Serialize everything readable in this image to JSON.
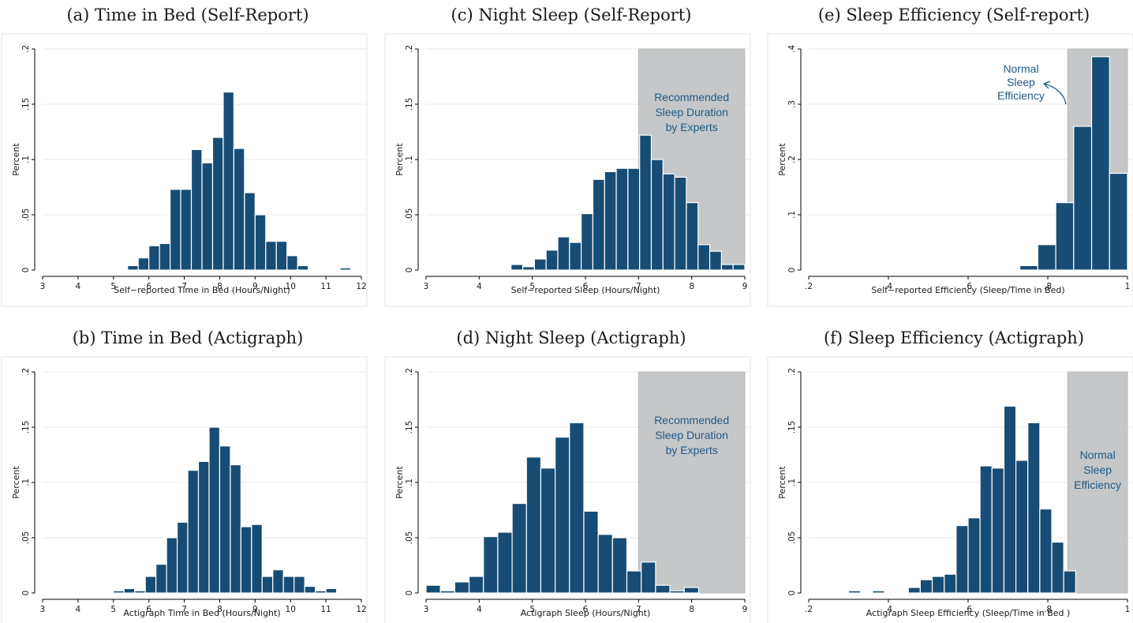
{
  "figure": {
    "panel_titles": [
      "(a) Time in Bed (Self-Report)",
      "(b) Time in Bed (Actigraph)",
      "(c) Night Sleep (Self-Report)",
      "(d) Night Sleep (Actigraph)",
      "(e) Sleep Efficiency (Self-report)",
      "(f) Sleep Efficiency (Actigraph)"
    ],
    "colors": {
      "bar": "#174d74",
      "shade": "#c5c7c8",
      "annotation": "#1f5a86"
    }
  },
  "chart_data": [
    {
      "id": "a",
      "type": "bar",
      "title": "(a) Time in Bed (Self-Report)",
      "xlabel": "Self−reported Time in Bed (Hours/Night)",
      "ylabel": "Percent",
      "xlim": [
        3,
        12
      ],
      "ylim": [
        0,
        0.2
      ],
      "xticks": [
        3,
        4,
        5,
        6,
        7,
        8,
        9,
        10,
        11,
        12
      ],
      "xtick_labels": [
        "3",
        "4",
        "5",
        "6",
        "7",
        "8",
        "9",
        "10",
        "11",
        "12"
      ],
      "yticks": [
        0,
        0.05,
        0.1,
        0.15,
        0.2
      ],
      "ytick_labels": [
        "0",
        ".05",
        ".1",
        ".15",
        ".2"
      ],
      "bin_width": 0.3,
      "bin_starts": [
        5.4,
        5.7,
        6.0,
        6.3,
        6.6,
        6.9,
        7.2,
        7.5,
        7.8,
        8.1,
        8.4,
        8.7,
        9.0,
        9.3,
        9.6,
        9.9,
        10.2,
        11.4
      ],
      "values": [
        0.004,
        0.011,
        0.022,
        0.024,
        0.073,
        0.073,
        0.109,
        0.097,
        0.12,
        0.161,
        0.11,
        0.07,
        0.05,
        0.026,
        0.026,
        0.013,
        0.004,
        0.002
      ]
    },
    {
      "id": "b",
      "type": "bar",
      "title": "(b) Time in Bed (Actigraph)",
      "xlabel": "Actigraph Time in Bed (Hours/Night)",
      "ylabel": "Percent",
      "xlim": [
        3,
        12
      ],
      "ylim": [
        0,
        0.2
      ],
      "xticks": [
        3,
        4,
        5,
        6,
        7,
        8,
        9,
        10,
        11,
        12
      ],
      "xtick_labels": [
        "3",
        "4",
        "5",
        "6",
        "7",
        "8",
        "9",
        "10",
        "11",
        "12"
      ],
      "yticks": [
        0,
        0.05,
        0.1,
        0.15,
        0.2
      ],
      "ytick_labels": [
        "0",
        ".05",
        ".1",
        ".15",
        ".2"
      ],
      "bin_width": 0.3,
      "bin_starts": [
        5.0,
        5.3,
        5.6,
        5.9,
        6.2,
        6.5,
        6.8,
        7.1,
        7.4,
        7.7,
        8.0,
        8.3,
        8.6,
        8.9,
        9.2,
        9.5,
        9.8,
        10.1,
        10.4,
        10.7,
        11.0
      ],
      "values": [
        0.002,
        0.004,
        0.002,
        0.015,
        0.026,
        0.05,
        0.064,
        0.111,
        0.119,
        0.15,
        0.133,
        0.116,
        0.06,
        0.062,
        0.015,
        0.021,
        0.015,
        0.015,
        0.006,
        0.002,
        0.004
      ]
    },
    {
      "id": "c",
      "type": "bar",
      "title": "(c) Night Sleep (Self-Report)",
      "xlabel": "Self−reported Sleep (Hours/Night)",
      "ylabel": "Percent",
      "xlim": [
        3,
        9
      ],
      "ylim": [
        0,
        0.2
      ],
      "xticks": [
        3,
        4,
        5,
        6,
        7,
        8,
        9
      ],
      "xtick_labels": [
        "3",
        "4",
        "5",
        "6",
        "7",
        "8",
        "9"
      ],
      "yticks": [
        0,
        0.05,
        0.1,
        0.15,
        0.2
      ],
      "ytick_labels": [
        "0",
        ".05",
        ".1",
        ".15",
        ".2"
      ],
      "bin_width": 0.22,
      "bin_starts": [
        4.6,
        4.82,
        5.04,
        5.26,
        5.48,
        5.7,
        5.92,
        6.14,
        6.36,
        6.58,
        6.8,
        7.02,
        7.24,
        7.46,
        7.68,
        7.9,
        8.12,
        8.34,
        8.56,
        8.78
      ],
      "values": [
        0.005,
        0.003,
        0.01,
        0.018,
        0.03,
        0.025,
        0.051,
        0.082,
        0.089,
        0.092,
        0.092,
        0.122,
        0.1,
        0.087,
        0.084,
        0.061,
        0.023,
        0.017,
        0.005,
        0.005
      ],
      "shaded_region": {
        "x_from": 7,
        "x_to": 9,
        "label": [
          "Recommended",
          "Sleep Duration",
          "by Experts"
        ]
      }
    },
    {
      "id": "d",
      "type": "bar",
      "title": "(d) Night Sleep (Actigraph)",
      "xlabel": "Actigraph Sleep (Hours/Night)",
      "ylabel": "Percent",
      "xlim": [
        3,
        9
      ],
      "ylim": [
        0,
        0.2
      ],
      "xticks": [
        3,
        4,
        5,
        6,
        7,
        8,
        9
      ],
      "xtick_labels": [
        "3",
        "4",
        "5",
        "6",
        "7",
        "8",
        "9"
      ],
      "yticks": [
        0,
        0.05,
        0.1,
        0.15,
        0.2
      ],
      "ytick_labels": [
        "0",
        ".05",
        ".1",
        ".15",
        ".2"
      ],
      "bin_width": 0.27,
      "bin_starts": [
        3.0,
        3.27,
        3.54,
        3.81,
        4.08,
        4.35,
        4.62,
        4.89,
        5.16,
        5.43,
        5.7,
        5.97,
        6.24,
        6.51,
        6.78,
        7.05,
        7.32,
        7.59,
        7.86
      ],
      "values": [
        0.007,
        0.002,
        0.01,
        0.015,
        0.051,
        0.055,
        0.081,
        0.123,
        0.113,
        0.141,
        0.154,
        0.074,
        0.053,
        0.05,
        0.02,
        0.028,
        0.007,
        0.002,
        0.005
      ],
      "shaded_region": {
        "x_from": 7,
        "x_to": 9,
        "label": [
          "Recommended",
          "Sleep Duration",
          "by Experts"
        ]
      }
    },
    {
      "id": "e",
      "type": "bar",
      "title": "(e) Sleep Efficiency (Self-report)",
      "xlabel": "Self−reported Efficiency (Sleep/Time in Bed)",
      "ylabel": "Percent",
      "xlim": [
        0.2,
        1.0
      ],
      "ylim": [
        0,
        0.4
      ],
      "xticks": [
        0.2,
        0.4,
        0.6,
        0.8,
        1.0
      ],
      "xtick_labels": [
        ".2",
        ".4",
        ".6",
        ".8",
        "1"
      ],
      "yticks": [
        0,
        0.1,
        0.2,
        0.3,
        0.4
      ],
      "ytick_labels": [
        "0",
        ".1",
        ".2",
        ".3",
        ".4"
      ],
      "bin_width": 0.045,
      "bin_starts": [
        0.73,
        0.775,
        0.82,
        0.865,
        0.91,
        0.955
      ],
      "values": [
        0.008,
        0.046,
        0.122,
        0.26,
        0.386,
        0.175
      ],
      "shaded_region": {
        "x_from": 0.85,
        "x_to": 1.0,
        "label": [
          "Normal",
          "Sleep",
          "Efficiency"
        ]
      }
    },
    {
      "id": "f",
      "type": "bar",
      "title": "(f) Sleep Efficiency (Actigraph)",
      "xlabel": "Actigraph Sleep Efficiency (Sleep/Time in Bed )",
      "ylabel": "Percent",
      "xlim": [
        0.2,
        1.0
      ],
      "ylim": [
        0,
        0.2
      ],
      "xticks": [
        0.2,
        0.4,
        0.6,
        0.8,
        1.0
      ],
      "xtick_labels": [
        ".2",
        ".4",
        ".6",
        ".8",
        "1"
      ],
      "yticks": [
        0,
        0.05,
        0.1,
        0.15,
        0.2
      ],
      "ytick_labels": [
        "0",
        ".05",
        ".1",
        ".15",
        ".2"
      ],
      "bin_width": 0.03,
      "bin_starts": [
        0.3,
        0.33,
        0.36,
        0.39,
        0.42,
        0.45,
        0.48,
        0.51,
        0.54,
        0.57,
        0.6,
        0.63,
        0.66,
        0.69,
        0.72,
        0.75,
        0.78,
        0.81,
        0.84
      ],
      "values": [
        0.002,
        0.0,
        0.002,
        0.0,
        0.0,
        0.005,
        0.012,
        0.015,
        0.017,
        0.061,
        0.068,
        0.115,
        0.113,
        0.169,
        0.12,
        0.154,
        0.076,
        0.046,
        0.02
      ],
      "shaded_region": {
        "x_from": 0.85,
        "x_to": 1.0,
        "label": [
          "Normal",
          "Sleep",
          "Efficiency"
        ]
      }
    }
  ]
}
